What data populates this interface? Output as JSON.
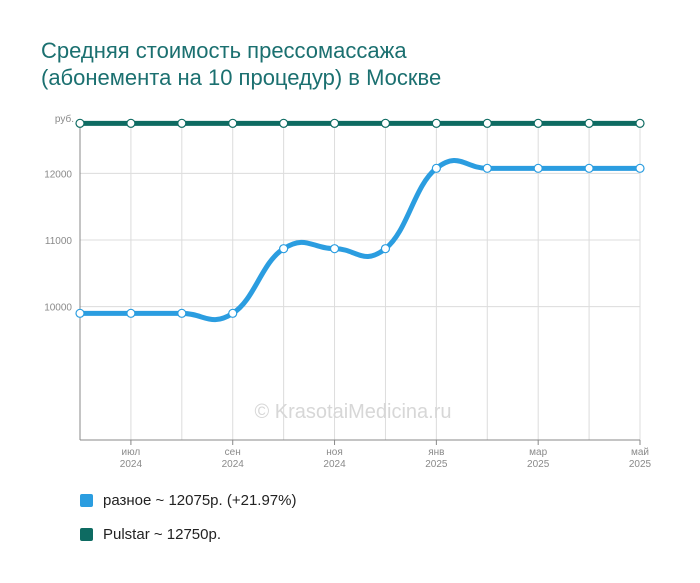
{
  "chart_data": {
    "type": "line",
    "title": [
      "Средняя стоимость прессомассажа",
      "(абонемента на 10 процедур) в Москве"
    ],
    "ylabel": "руб.",
    "ylim": [
      8000,
      12800
    ],
    "yticks": [
      10000,
      11000,
      12000
    ],
    "xticks": [
      {
        "month": "июл",
        "year": "2024"
      },
      {
        "month": "сен",
        "year": "2024"
      },
      {
        "month": "ноя",
        "year": "2024"
      },
      {
        "month": "янв",
        "year": "2025"
      },
      {
        "month": "мар",
        "year": "2025"
      },
      {
        "month": "май",
        "year": "2025"
      }
    ],
    "x": [
      "2024-06",
      "2024-07",
      "2024-08",
      "2024-09",
      "2024-10",
      "2024-11",
      "2024-12",
      "2025-01",
      "2025-02",
      "2025-03",
      "2025-04",
      "2025-05"
    ],
    "grid": true,
    "legend_position": "bottom-left",
    "series": [
      {
        "name": "разное",
        "color": "#2b9de0",
        "values": [
          9900,
          9900,
          9900,
          9900,
          10870,
          10870,
          10870,
          12075,
          12075,
          12075,
          12075,
          12075
        ]
      },
      {
        "name": "Pulstar",
        "color": "#0e6b62",
        "values": [
          12750,
          12750,
          12750,
          12750,
          12750,
          12750,
          12750,
          12750,
          12750,
          12750,
          12750,
          12750
        ]
      }
    ]
  },
  "legend": [
    {
      "label": "разное ~ 12075р. (+21.97%)",
      "color": "#2b9de0"
    },
    {
      "label": "Pulstar ~ 12750р.",
      "color": "#0e6b62"
    }
  ],
  "watermark": "© KrasotaiMedicina.ru"
}
